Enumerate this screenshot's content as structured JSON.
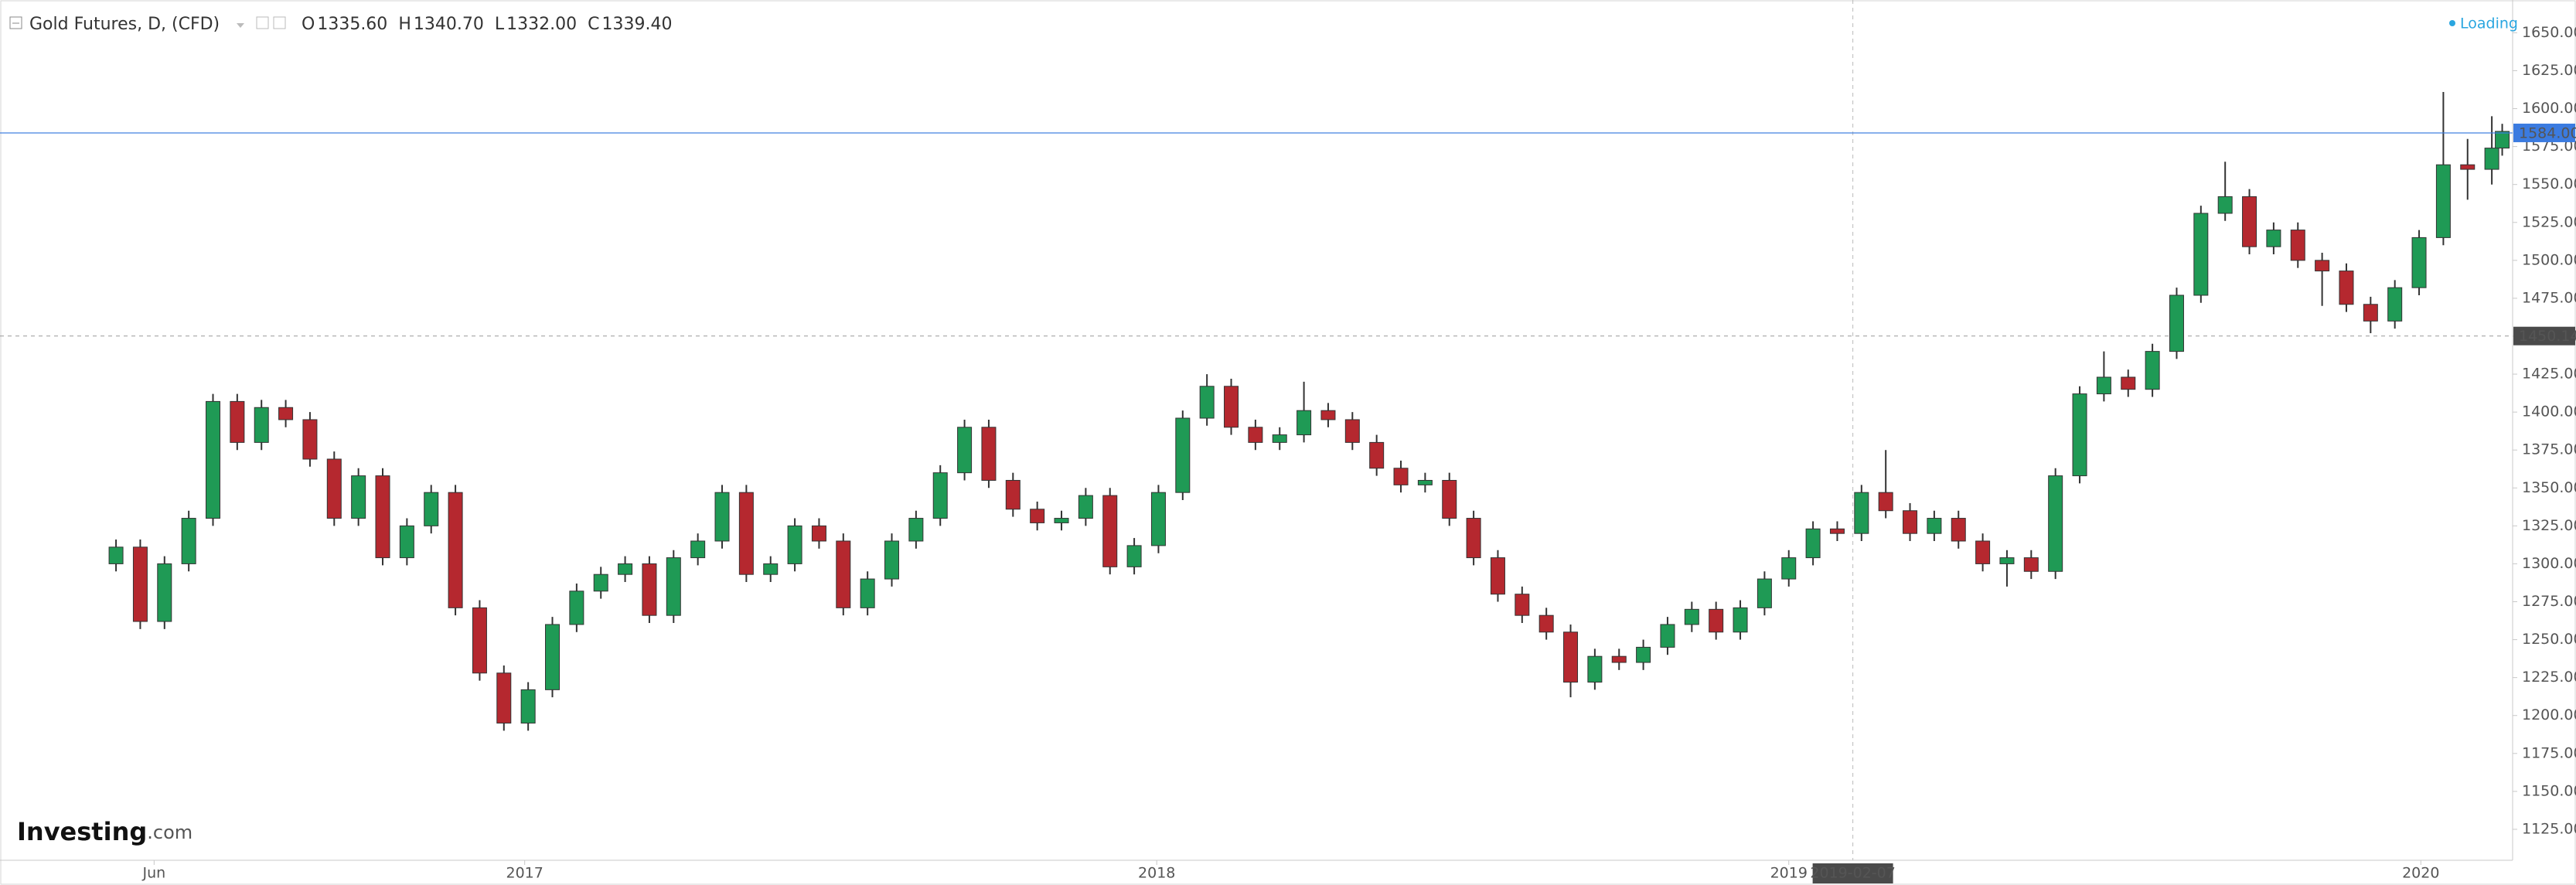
{
  "chart_data": {
    "type": "candlestick",
    "title": "Gold Futures, D, (CFD)",
    "ohlc_legend": [
      {
        "key": "O",
        "value": "1335.60"
      },
      {
        "key": "H",
        "value": "1340.70"
      },
      {
        "key": "L",
        "value": "1332.00"
      },
      {
        "key": "C",
        "value": "1339.40"
      }
    ],
    "status": "Loading",
    "logo": {
      "name": "Investing",
      "suffix": ".com"
    },
    "up_color": "#1f9a55",
    "down_color": "#b5282f",
    "x": [
      "2016-05-10",
      "2016-05-24",
      "2016-06-07",
      "2016-06-21",
      "2016-07-05",
      "2016-07-19",
      "2016-08-02",
      "2016-08-16",
      "2016-08-30",
      "2016-09-13",
      "2016-09-27",
      "2016-10-11",
      "2016-10-25",
      "2016-11-08",
      "2016-11-22",
      "2016-12-06",
      "2016-12-20",
      "2017-01-03",
      "2017-01-17",
      "2017-01-31",
      "2017-02-14",
      "2017-02-28",
      "2017-03-14",
      "2017-03-28",
      "2017-04-11",
      "2017-04-25",
      "2017-05-09",
      "2017-05-23",
      "2017-06-06",
      "2017-06-20",
      "2017-07-04",
      "2017-07-18",
      "2017-08-01",
      "2017-08-15",
      "2017-08-29",
      "2017-09-12",
      "2017-09-26",
      "2017-10-10",
      "2017-10-24",
      "2017-11-07",
      "2017-11-21",
      "2017-12-05",
      "2017-12-19",
      "2018-01-02",
      "2018-01-16",
      "2018-01-30",
      "2018-02-13",
      "2018-02-27",
      "2018-03-13",
      "2018-03-27",
      "2018-04-10",
      "2018-04-24",
      "2018-05-08",
      "2018-05-22",
      "2018-06-05",
      "2018-06-19",
      "2018-07-03",
      "2018-07-17",
      "2018-07-31",
      "2018-08-14",
      "2018-08-28",
      "2018-09-11",
      "2018-09-25",
      "2018-10-09",
      "2018-10-23",
      "2018-11-06",
      "2018-11-20",
      "2018-12-04",
      "2018-12-18",
      "2019-01-01",
      "2019-01-15",
      "2019-01-29",
      "2019-02-12",
      "2019-02-26",
      "2019-03-12",
      "2019-03-26",
      "2019-04-09",
      "2019-04-23",
      "2019-05-07",
      "2019-05-21",
      "2019-06-04",
      "2019-06-18",
      "2019-07-02",
      "2019-07-16",
      "2019-07-30",
      "2019-08-13",
      "2019-08-27",
      "2019-09-10",
      "2019-09-24",
      "2019-10-08",
      "2019-10-22",
      "2019-11-05",
      "2019-11-19",
      "2019-12-03",
      "2019-12-17",
      "2019-12-31",
      "2020-01-14",
      "2020-01-28",
      "2020-02-11",
      "2020-02-17"
    ],
    "open": [
      1300,
      1311,
      1262,
      1300,
      1330,
      1407,
      1380,
      1403,
      1395,
      1369,
      1330,
      1358,
      1304,
      1325,
      1347,
      1271,
      1228,
      1195,
      1217,
      1260,
      1282,
      1293,
      1300,
      1266,
      1304,
      1315,
      1347,
      1293,
      1300,
      1325,
      1315,
      1271,
      1290,
      1315,
      1330,
      1360,
      1390,
      1355,
      1336,
      1327,
      1330,
      1345,
      1298,
      1312,
      1347,
      1396,
      1417,
      1390,
      1380,
      1385,
      1401,
      1395,
      1380,
      1363,
      1352,
      1355,
      1330,
      1304,
      1280,
      1266,
      1255,
      1222,
      1239,
      1235,
      1245,
      1260,
      1270,
      1255,
      1271,
      1290,
      1304,
      1323,
      1320,
      1347,
      1335,
      1320,
      1330,
      1315,
      1300,
      1304,
      1295,
      1358,
      1412,
      1423,
      1415,
      1440,
      1477,
      1531,
      1542,
      1509,
      1520,
      1500,
      1493,
      1471,
      1460,
      1482,
      1515,
      1563,
      1560,
      1574
    ],
    "high": [
      1316,
      1316,
      1305,
      1335,
      1412,
      1412,
      1408,
      1408,
      1400,
      1374,
      1363,
      1363,
      1330,
      1352,
      1352,
      1276,
      1233,
      1222,
      1265,
      1287,
      1298,
      1305,
      1305,
      1309,
      1320,
      1352,
      1352,
      1305,
      1330,
      1330,
      1320,
      1295,
      1320,
      1335,
      1365,
      1395,
      1395,
      1360,
      1341,
      1335,
      1350,
      1350,
      1317,
      1352,
      1401,
      1425,
      1422,
      1395,
      1390,
      1420,
      1406,
      1400,
      1385,
      1368,
      1360,
      1360,
      1335,
      1309,
      1285,
      1271,
      1260,
      1244,
      1244,
      1250,
      1265,
      1275,
      1275,
      1276,
      1295,
      1309,
      1328,
      1328,
      1352,
      1375,
      1340,
      1335,
      1335,
      1320,
      1309,
      1309,
      1363,
      1417,
      1440,
      1428,
      1445,
      1482,
      1536,
      1565,
      1547,
      1525,
      1525,
      1505,
      1498,
      1476,
      1487,
      1520,
      1611,
      1580,
      1595,
      1590
    ],
    "low": [
      1295,
      1257,
      1257,
      1295,
      1325,
      1375,
      1375,
      1390,
      1364,
      1325,
      1325,
      1299,
      1299,
      1320,
      1266,
      1223,
      1190,
      1190,
      1212,
      1255,
      1277,
      1288,
      1261,
      1261,
      1299,
      1310,
      1288,
      1288,
      1295,
      1310,
      1266,
      1266,
      1285,
      1310,
      1325,
      1355,
      1350,
      1331,
      1322,
      1322,
      1325,
      1293,
      1293,
      1307,
      1342,
      1391,
      1385,
      1375,
      1375,
      1380,
      1390,
      1375,
      1358,
      1347,
      1347,
      1325,
      1299,
      1275,
      1261,
      1250,
      1212,
      1217,
      1230,
      1230,
      1240,
      1255,
      1250,
      1250,
      1266,
      1285,
      1299,
      1315,
      1315,
      1330,
      1315,
      1315,
      1310,
      1295,
      1285,
      1290,
      1290,
      1353,
      1407,
      1410,
      1410,
      1435,
      1472,
      1526,
      1504,
      1504,
      1495,
      1470,
      1466,
      1452,
      1455,
      1477,
      1510,
      1540,
      1550,
      1569
    ],
    "close": [
      1311,
      1262,
      1300,
      1330,
      1407,
      1380,
      1403,
      1395,
      1369,
      1330,
      1358,
      1304,
      1325,
      1347,
      1271,
      1228,
      1195,
      1217,
      1260,
      1282,
      1293,
      1300,
      1266,
      1304,
      1315,
      1347,
      1293,
      1300,
      1325,
      1315,
      1271,
      1290,
      1315,
      1330,
      1360,
      1390,
      1355,
      1336,
      1327,
      1330,
      1345,
      1298,
      1312,
      1347,
      1396,
      1417,
      1390,
      1380,
      1385,
      1401,
      1395,
      1380,
      1363,
      1352,
      1355,
      1330,
      1304,
      1280,
      1266,
      1255,
      1222,
      1239,
      1235,
      1245,
      1260,
      1270,
      1255,
      1271,
      1290,
      1304,
      1323,
      1320,
      1347,
      1335,
      1320,
      1330,
      1315,
      1300,
      1304,
      1295,
      1358,
      1412,
      1423,
      1415,
      1440,
      1477,
      1531,
      1542,
      1509,
      1520,
      1500,
      1493,
      1471,
      1460,
      1482,
      1515,
      1563,
      1560,
      1574,
      1585
    ],
    "xlim": [
      "2016-03-04",
      "2020-02-23"
    ],
    "xticks": [
      {
        "value": "2016-06-01",
        "label": "Jun"
      },
      {
        "value": "2017-01-01",
        "label": "2017"
      },
      {
        "value": "2018-01-01",
        "label": "2018"
      },
      {
        "value": "2019-01-01",
        "label": "2019"
      },
      {
        "value": "2020-01-01",
        "label": "2020"
      }
    ],
    "ylim": [
      1104.6,
      1671.6
    ],
    "yticks": [
      {
        "value": 1125,
        "label": "1125.00"
      },
      {
        "value": 1150,
        "label": "1150.00"
      },
      {
        "value": 1175,
        "label": "1175.00"
      },
      {
        "value": 1200,
        "label": "1200.00"
      },
      {
        "value": 1225,
        "label": "1225.00"
      },
      {
        "value": 1250,
        "label": "1250.00"
      },
      {
        "value": 1275,
        "label": "1275.00"
      },
      {
        "value": 1300,
        "label": "1300.00"
      },
      {
        "value": 1325,
        "label": "1325.00"
      },
      {
        "value": 1350,
        "label": "1350.00"
      },
      {
        "value": 1375,
        "label": "1375.00"
      },
      {
        "value": 1400,
        "label": "1400.00"
      },
      {
        "value": 1425,
        "label": "1425.00"
      },
      {
        "value": 1450,
        "label": "1450.00"
      },
      {
        "value": 1475,
        "label": "1475.00"
      },
      {
        "value": 1500,
        "label": "1500.00"
      },
      {
        "value": 1525,
        "label": "1525.00"
      },
      {
        "value": 1550,
        "label": "1550.00"
      },
      {
        "value": 1575,
        "label": "1575.00"
      },
      {
        "value": 1600,
        "label": "1600.00"
      },
      {
        "value": 1625,
        "label": "1625.00"
      },
      {
        "value": 1650,
        "label": "1650.00"
      }
    ],
    "price_line": {
      "value": 1584,
      "label": "1584.00",
      "color": "#3b7be0"
    },
    "crosshair": {
      "x": "2019-02-07",
      "y": 1450.14
    }
  }
}
